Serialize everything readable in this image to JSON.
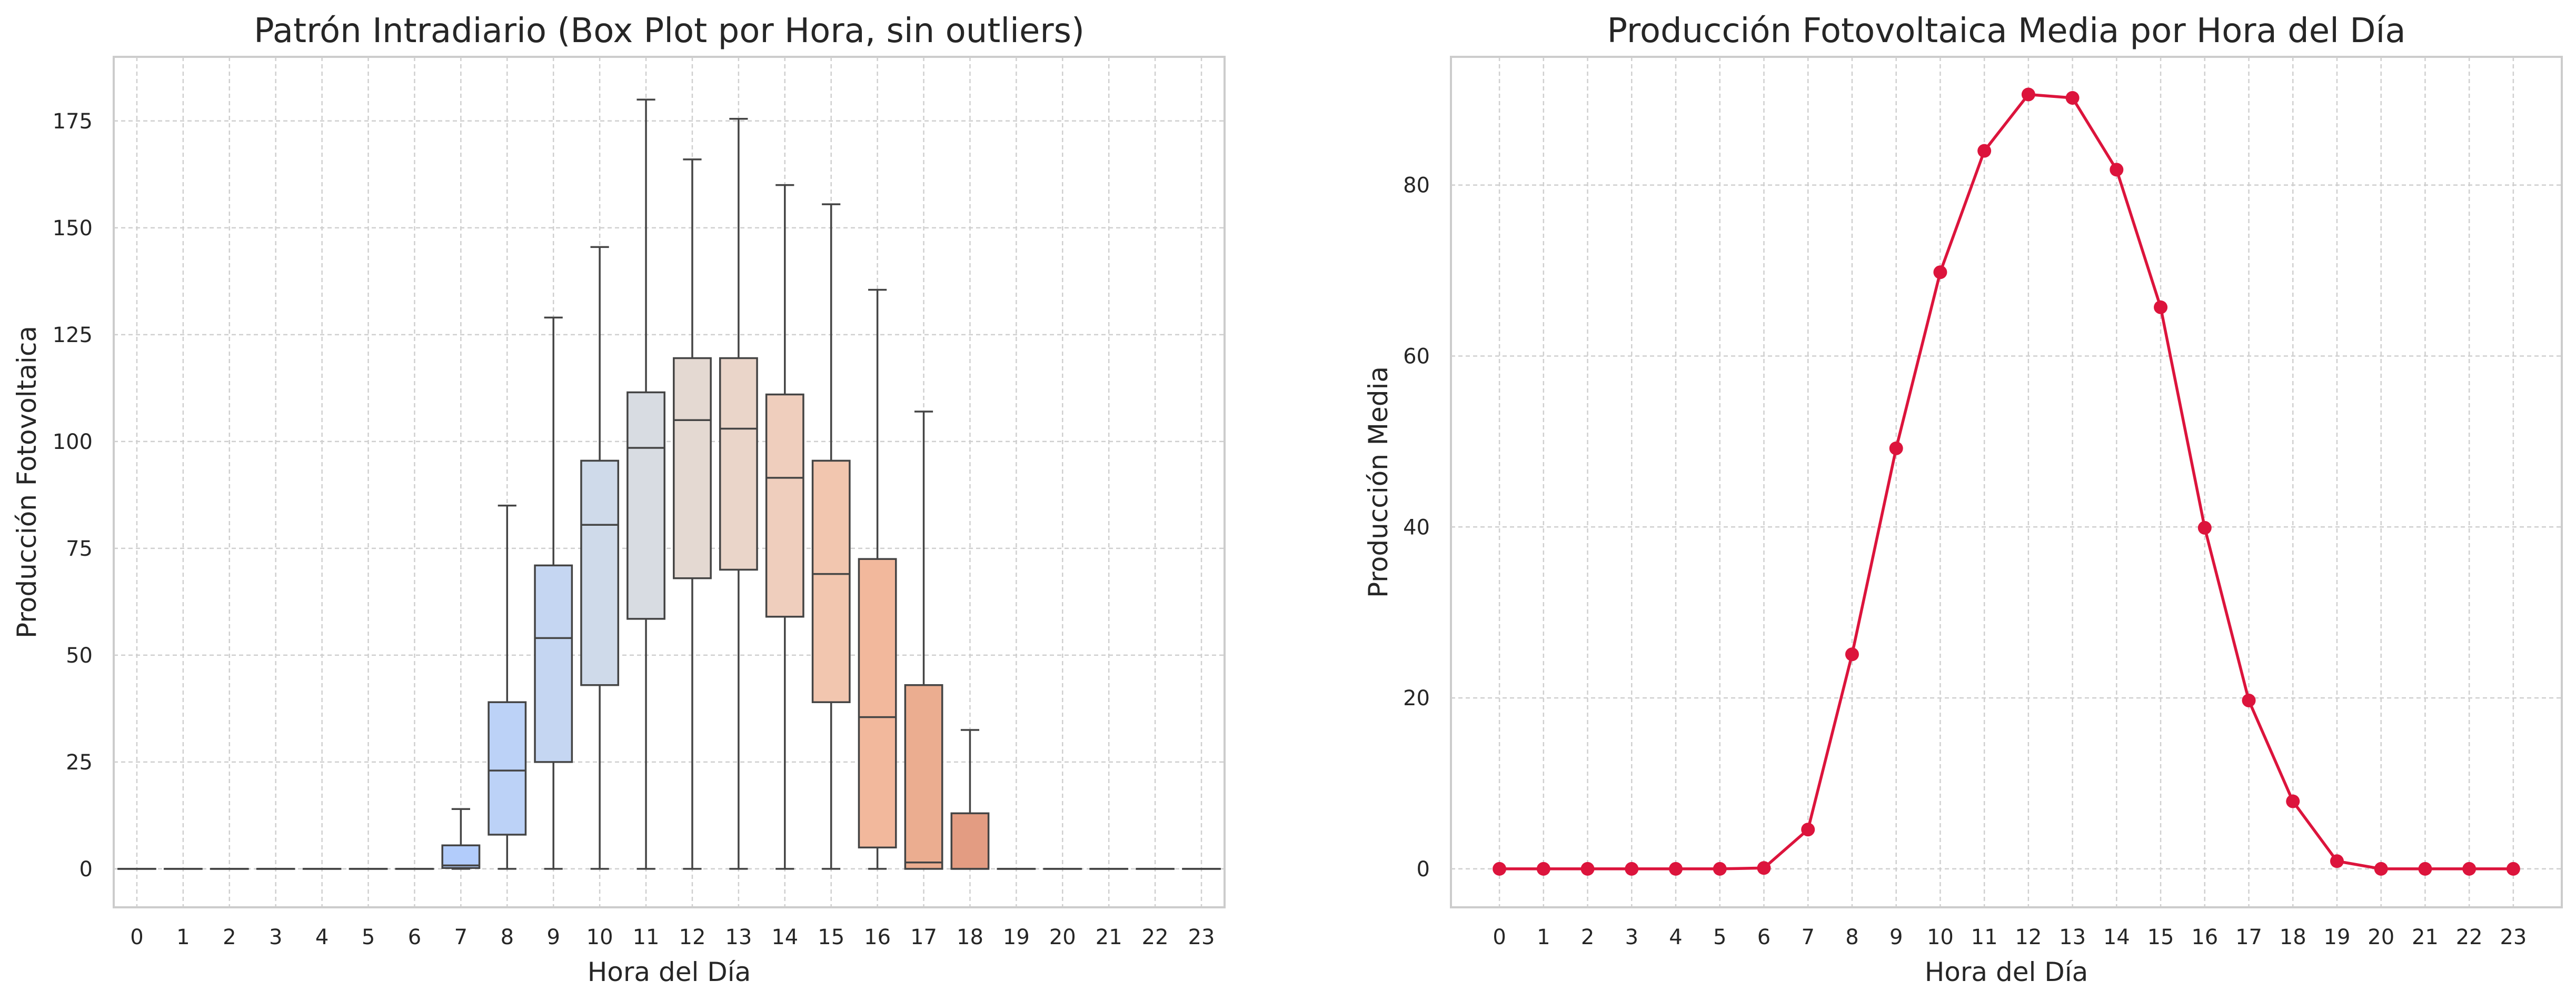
{
  "chart_data": [
    {
      "type": "box",
      "title": "Patrón Intradiario (Box Plot por Hora, sin outliers)",
      "xlabel": "Hora del Día",
      "ylabel": "Producción Fotovoltaica",
      "categories": [
        "0",
        "1",
        "2",
        "3",
        "4",
        "5",
        "6",
        "7",
        "8",
        "9",
        "10",
        "11",
        "12",
        "13",
        "14",
        "15",
        "16",
        "17",
        "18",
        "19",
        "20",
        "21",
        "22",
        "23"
      ],
      "ylim": [
        -9,
        190
      ],
      "yticks": [
        0,
        25,
        50,
        75,
        100,
        125,
        150,
        175
      ],
      "grid": true,
      "boxes": [
        {
          "hour": "0",
          "whislo": 0,
          "q1": 0,
          "med": 0,
          "q3": 0,
          "whishi": 0,
          "color": "#3b4cc0"
        },
        {
          "hour": "1",
          "whislo": 0,
          "q1": 0,
          "med": 0,
          "q3": 0,
          "whishi": 0,
          "color": "#4a63d3"
        },
        {
          "hour": "2",
          "whislo": 0,
          "q1": 0,
          "med": 0,
          "q3": 0,
          "whishi": 0,
          "color": "#5b7ae5"
        },
        {
          "hour": "3",
          "whislo": 0,
          "q1": 0,
          "med": 0,
          "q3": 0,
          "whishi": 0,
          "color": "#6c8ff1"
        },
        {
          "hour": "4",
          "whislo": 0,
          "q1": 0,
          "med": 0,
          "q3": 0,
          "whishi": 0,
          "color": "#7ea3fa"
        },
        {
          "hour": "5",
          "whislo": 0,
          "q1": 0,
          "med": 0,
          "q3": 0,
          "whishi": 0,
          "color": "#8fb1fe"
        },
        {
          "hour": "6",
          "whislo": 0,
          "q1": 0,
          "med": 0,
          "q3": 0,
          "whishi": 0,
          "color": "#a1c0ff"
        },
        {
          "hour": "7",
          "whislo": 0,
          "q1": 0.2,
          "med": 0.8,
          "q3": 5.5,
          "whishi": 14,
          "color": "#b2ccfb"
        },
        {
          "hour": "8",
          "whislo": 0,
          "q1": 8,
          "med": 23,
          "q3": 39,
          "whishi": 85,
          "color": "#bcd2f7"
        },
        {
          "hour": "9",
          "whislo": 0,
          "q1": 25,
          "med": 54,
          "q3": 71,
          "whishi": 129,
          "color": "#c5d6f2"
        },
        {
          "hour": "10",
          "whislo": 0,
          "q1": 43,
          "med": 80.5,
          "q3": 95.5,
          "whishi": 145.5,
          "color": "#cfdaea"
        },
        {
          "hour": "11",
          "whislo": 0,
          "q1": 58.5,
          "med": 98.5,
          "q3": 111.5,
          "whishi": 180,
          "color": "#d8dce2"
        },
        {
          "hour": "12",
          "whislo": 0,
          "q1": 68,
          "med": 105,
          "q3": 119.5,
          "whishi": 166,
          "color": "#e4d9d2"
        },
        {
          "hour": "13",
          "whislo": 0,
          "q1": 70,
          "med": 103,
          "q3": 119.5,
          "whishi": 175.5,
          "color": "#ead5c9"
        },
        {
          "hour": "14",
          "whislo": 0,
          "q1": 59,
          "med": 91.5,
          "q3": 111,
          "whishi": 160,
          "color": "#efcebd"
        },
        {
          "hour": "15",
          "whislo": 0,
          "q1": 39,
          "med": 69,
          "q3": 95.5,
          "whishi": 155.5,
          "color": "#f2c6af"
        },
        {
          "hour": "16",
          "whislo": 0,
          "q1": 5,
          "med": 35.5,
          "q3": 72.5,
          "whishi": 135.5,
          "color": "#f2b89c"
        },
        {
          "hour": "17",
          "whislo": 0,
          "q1": 0,
          "med": 1.5,
          "q3": 43,
          "whishi": 107,
          "color": "#ebad90"
        },
        {
          "hour": "18",
          "whislo": 0,
          "q1": 0,
          "med": 0,
          "q3": 13,
          "whishi": 32.5,
          "color": "#e39c82"
        },
        {
          "hour": "19",
          "whislo": 0,
          "q1": 0,
          "med": 0,
          "q3": 0,
          "whishi": 0,
          "color": "#d98670"
        },
        {
          "hour": "20",
          "whislo": 0,
          "q1": 0,
          "med": 0,
          "q3": 0,
          "whishi": 0,
          "color": "#cf7462"
        },
        {
          "hour": "21",
          "whislo": 0,
          "q1": 0,
          "med": 0,
          "q3": 0,
          "whishi": 0,
          "color": "#c25b4e"
        },
        {
          "hour": "22",
          "whislo": 0,
          "q1": 0,
          "med": 0,
          "q3": 0,
          "whishi": 0,
          "color": "#b5403d"
        },
        {
          "hour": "23",
          "whislo": 0,
          "q1": 0,
          "med": 0,
          "q3": 0,
          "whishi": 0,
          "color": "#b40426"
        }
      ]
    },
    {
      "type": "line",
      "title": "Producción Fotovoltaica Media por Hora del Día",
      "xlabel": "Hora del Día",
      "ylabel": "Producción Media",
      "x": [
        0,
        1,
        2,
        3,
        4,
        5,
        6,
        7,
        8,
        9,
        10,
        11,
        12,
        13,
        14,
        15,
        16,
        17,
        18,
        19,
        20,
        21,
        22,
        23
      ],
      "series": [
        {
          "values": [
            0,
            0,
            0,
            0,
            0,
            0,
            0.1,
            4.6,
            25.1,
            49.2,
            69.8,
            84.0,
            90.6,
            90.2,
            81.8,
            65.7,
            39.9,
            19.7,
            7.9,
            0.9,
            0,
            0,
            0,
            0
          ],
          "color": "#dc143c"
        }
      ],
      "xlim": [
        -1.1,
        24.1
      ],
      "ylim": [
        -4.5,
        95
      ],
      "yticks": [
        0,
        20,
        40,
        60,
        80
      ],
      "grid": true
    }
  ]
}
